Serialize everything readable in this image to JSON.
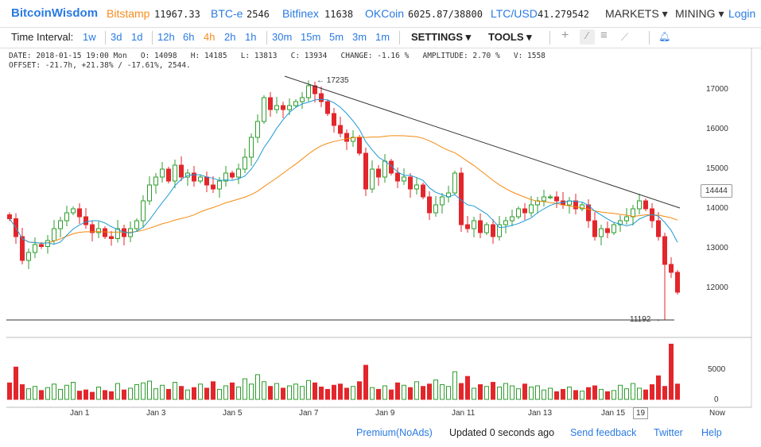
{
  "header": {
    "brand": "BitcoinWisdom",
    "tickers": [
      {
        "name": "Bitstamp",
        "value": "11967.33"
      },
      {
        "name": "BTC-e",
        "value": "2546"
      },
      {
        "name": "Bitfinex",
        "value": "11638"
      },
      {
        "name": "OKCoin",
        "value": "6025.87/38800"
      },
      {
        "name": "LTC/USD",
        "value": "41.279542"
      }
    ],
    "markets": "MARKETS",
    "mining": "MINING",
    "login": "Login"
  },
  "toolbar": {
    "label": "Time Interval:",
    "intervals": [
      "1w",
      "3d",
      "1d",
      "12h",
      "6h",
      "4h",
      "2h",
      "1h",
      "30m",
      "15m",
      "5m",
      "3m",
      "1m"
    ],
    "active": "4h",
    "settings": "SETTINGS",
    "tools": "TOOLS"
  },
  "info": {
    "line1": "DATE: 2018-01-15 19:00 Mon   O: 14098   H: 14185   L: 13813   C: 13934   CHANGE: -1.16 %   AMPLITUDE: 2.70 %   V: 1558",
    "line2": "OFFSET: -21.7h, +21.38% / -17.61%, 2544."
  },
  "chart_data": {
    "type": "candlestick",
    "price_axis": [
      "17000",
      "16000",
      "15000",
      "14000",
      "13000",
      "12000"
    ],
    "ylim": [
      11000,
      17500
    ],
    "volume_axis": [
      "5000",
      "0"
    ],
    "x_labels": [
      "Jan 1",
      "Jan 3",
      "Jan 5",
      "Jan 7",
      "Jan 9",
      "Jan 11",
      "Jan 13",
      "Jan 15",
      "19",
      "Now"
    ],
    "high_label": "← 17235",
    "low_label": "11192 →",
    "current_price": "14444",
    "low_price": 11192,
    "high_price": 17235,
    "closes": [
      13750,
      13300,
      12700,
      12900,
      13100,
      13050,
      13200,
      13500,
      13700,
      13900,
      14000,
      13800,
      13600,
      13400,
      13500,
      13300,
      13250,
      13500,
      13300,
      13500,
      13700,
      14200,
      14600,
      14800,
      15000,
      14700,
      15100,
      14800,
      14900,
      14700,
      14800,
      14600,
      14500,
      14700,
      14900,
      14800,
      15000,
      15300,
      15800,
      16200,
      16800,
      16500,
      16600,
      16500,
      16600,
      16700,
      16800,
      17100,
      16900,
      16700,
      16400,
      16100,
      15900,
      15700,
      15800,
      15400,
      14500,
      15000,
      14800,
      15200,
      14900,
      14700,
      14800,
      14500,
      14600,
      14300,
      13900,
      14100,
      14300,
      14400,
      14900,
      13600,
      13500,
      13700,
      13400,
      13600,
      13300,
      13600,
      13700,
      13800,
      14000,
      13900,
      14100,
      14200,
      14300,
      14300,
      14200,
      14100,
      14200,
      14000,
      14100,
      13700,
      13300,
      13500,
      13400,
      13600,
      13700,
      13800,
      14000,
      14200,
      14000,
      13700,
      13300,
      12600,
      12400,
      11900
    ],
    "volumes": [
      2800,
      5500,
      2500,
      1800,
      2200,
      1500,
      2000,
      2600,
      1700,
      2400,
      2900,
      1400,
      1600,
      1200,
      2100,
      1500,
      1300,
      2700,
      1600,
      1900,
      2500,
      2800,
      3100,
      1800,
      2400,
      1700,
      2900,
      2200,
      1600,
      2000,
      2600,
      1900,
      3000,
      1700,
      2300,
      2800,
      2100,
      3500,
      2600,
      4200,
      3000,
      2200,
      2700,
      1900,
      2300,
      2600,
      2200,
      3200,
      2800,
      2100,
      1700,
      2400,
      2600,
      1900,
      2200,
      3000,
      5800,
      2000,
      1700,
      2300,
      1600,
      2800,
      2400,
      2000,
      3000,
      2200,
      2600,
      3300,
      2500,
      2200,
      4700,
      2700,
      3900,
      1900,
      2500,
      2200,
      2900,
      2100,
      2700,
      2300,
      1800,
      2600,
      2100,
      2300,
      1600,
      1900,
      1300,
      1700,
      2100,
      1500,
      1400,
      2000,
      2300,
      1700,
      1300,
      1500,
      2400,
      1800,
      2700,
      1900,
      1600,
      2500,
      4000,
      2200,
      9400,
      2600
    ]
  },
  "footer": {
    "premium": "Premium(NoAds)",
    "updated": "Updated 0 seconds ago",
    "feedback": "Send feedback",
    "twitter": "Twitter",
    "help": "Help"
  },
  "colors": {
    "up": "#2e9e2e",
    "down": "#e3262b",
    "ma_fast": "#1e9ad6",
    "ma_slow": "#f5890f",
    "link": "#2a7ae2"
  }
}
